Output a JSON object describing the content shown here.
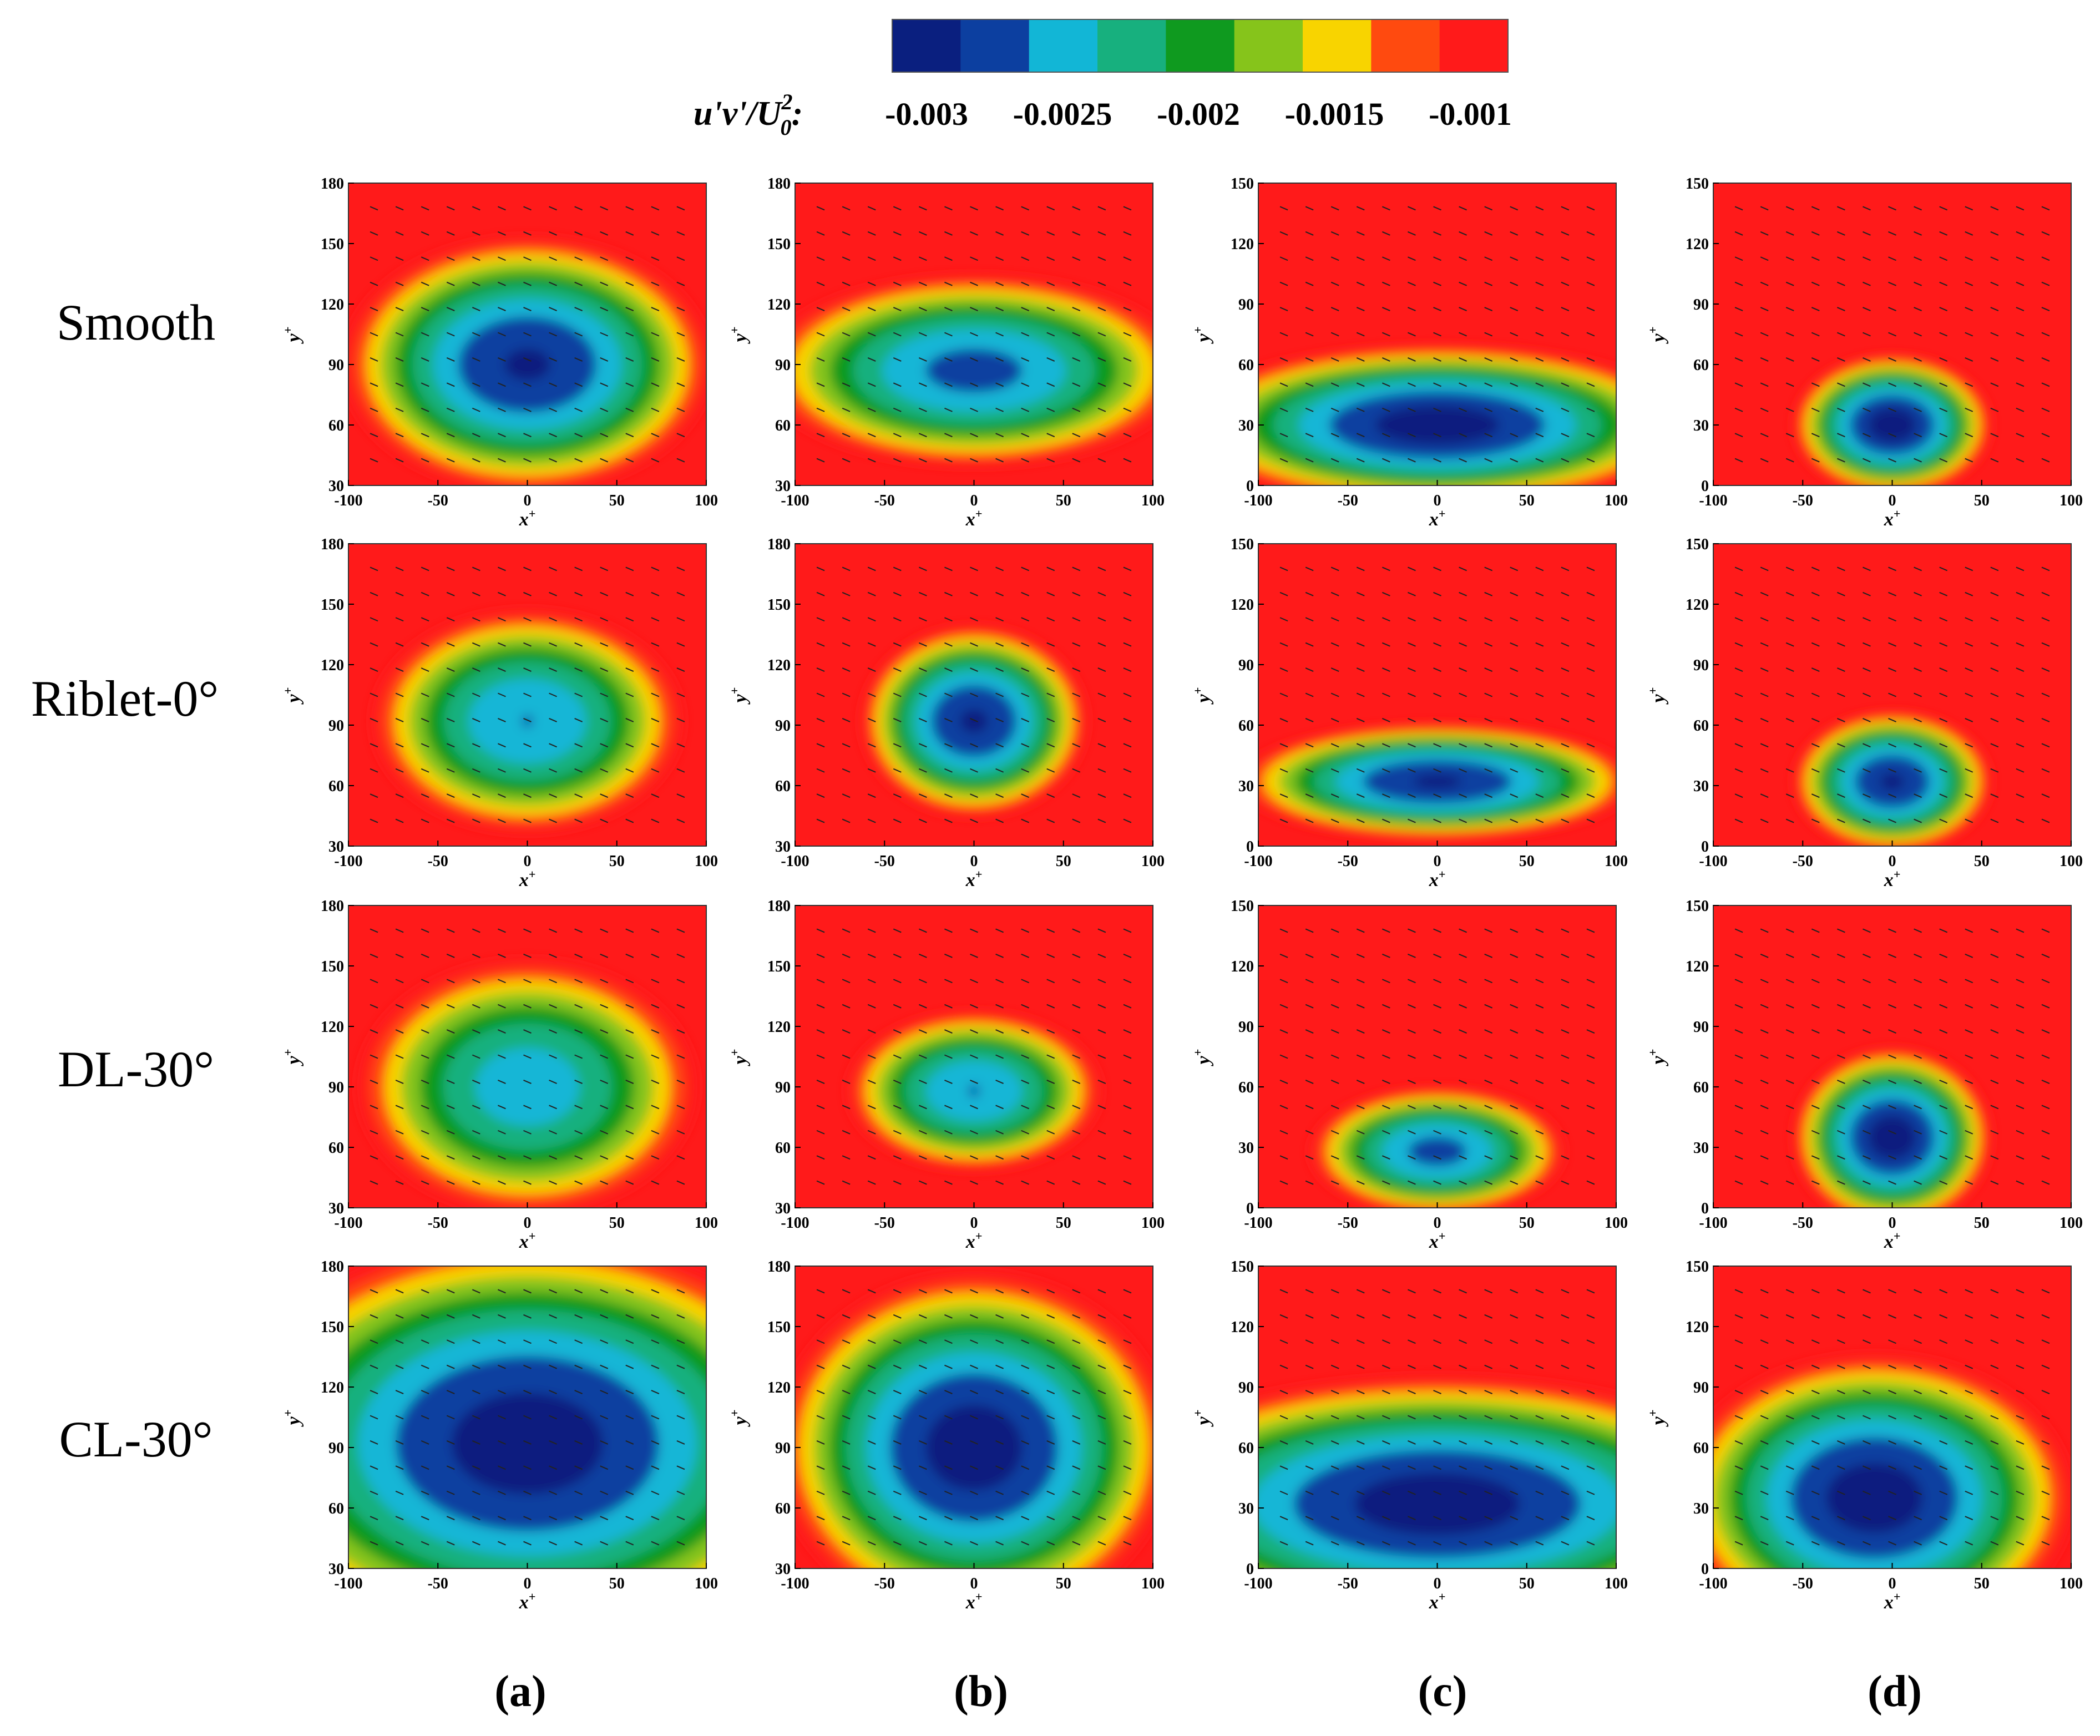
{
  "figure": {
    "colorbar": {
      "label": "u'v'/U0^2:",
      "label_parts": {
        "base": "u'v'/U",
        "sup": "2",
        "sub": "0",
        "colon": ":"
      },
      "tick_labels": [
        "-0.003",
        "-0.0025",
        "-0.002",
        "-0.0015",
        "-0.001"
      ],
      "colors": [
        "#0a1f7f",
        "#0c3fa0",
        "#12b6d6",
        "#17b07e",
        "#0f9a1f",
        "#86c41b",
        "#f8d400",
        "#ff4a0f",
        "#ff1a1a"
      ]
    },
    "row_labels": [
      "Smooth",
      "Riblet-0°",
      "DL-30°",
      "CL-30°"
    ],
    "column_labels": [
      "(a)",
      "(b)",
      "(c)",
      "(d)"
    ],
    "axis_labels": {
      "x_base": "x",
      "y_base": "y",
      "sup": "+"
    }
  },
  "chart_data": {
    "type": "heatmap",
    "quantity": "u'v'/U0^2",
    "value_range": [
      -0.0032,
      -0.0008
    ],
    "background_value": -0.0009,
    "panels": [
      {
        "row": 0,
        "col": 0,
        "x_ticks": [
          "-100",
          "-50",
          "0",
          "50",
          "100"
        ],
        "y_ticks": [
          "30",
          "60",
          "90",
          "120",
          "150",
          "180"
        ],
        "xlim": [
          -100,
          100
        ],
        "ylim": [
          30,
          180
        ],
        "core": {
          "x": 0,
          "y": 90,
          "rx": 65,
          "ry": 40,
          "min": -0.0031
        }
      },
      {
        "row": 0,
        "col": 1,
        "x_ticks": [
          "-100",
          "-50",
          "0",
          "50",
          "100"
        ],
        "y_ticks": [
          "30",
          "60",
          "90",
          "120",
          "150",
          "180"
        ],
        "xlim": [
          -100,
          100
        ],
        "ylim": [
          30,
          180
        ],
        "core": {
          "x": 0,
          "y": 87,
          "rx": 75,
          "ry": 30,
          "min": -0.0029
        }
      },
      {
        "row": 0,
        "col": 2,
        "x_ticks": [
          "-100",
          "-50",
          "0",
          "50",
          "100"
        ],
        "y_ticks": [
          "0",
          "30",
          "60",
          "90",
          "120",
          "150"
        ],
        "xlim": [
          -100,
          100
        ],
        "ylim": [
          0,
          150
        ],
        "core": {
          "x": 0,
          "y": 30,
          "rx": 90,
          "ry": 25,
          "min": -0.0032
        }
      },
      {
        "row": 0,
        "col": 3,
        "x_ticks": [
          "-100",
          "-50",
          "0",
          "50",
          "100"
        ],
        "y_ticks": [
          "0",
          "30",
          "60",
          "90",
          "120",
          "150"
        ],
        "xlim": [
          -100,
          100
        ],
        "ylim": [
          0,
          150
        ],
        "core": {
          "x": 0,
          "y": 30,
          "rx": 35,
          "ry": 22,
          "min": -0.0032
        }
      },
      {
        "row": 1,
        "col": 0,
        "x_ticks": [
          "-100",
          "-50",
          "0",
          "50",
          "100"
        ],
        "y_ticks": [
          "30",
          "60",
          "90",
          "120",
          "150",
          "180"
        ],
        "xlim": [
          -100,
          100
        ],
        "ylim": [
          30,
          180
        ],
        "core": {
          "x": 0,
          "y": 92,
          "rx": 55,
          "ry": 35,
          "min": -0.0028
        }
      },
      {
        "row": 1,
        "col": 1,
        "x_ticks": [
          "-100",
          "-50",
          "0",
          "50",
          "100"
        ],
        "y_ticks": [
          "30",
          "60",
          "90",
          "120",
          "150",
          "180"
        ],
        "xlim": [
          -100,
          100
        ],
        "ylim": [
          30,
          180
        ],
        "core": {
          "x": 0,
          "y": 92,
          "rx": 40,
          "ry": 30,
          "min": -0.0031
        }
      },
      {
        "row": 1,
        "col": 2,
        "x_ticks": [
          "-100",
          "-50",
          "0",
          "50",
          "100"
        ],
        "y_ticks": [
          "0",
          "30",
          "60",
          "90",
          "120",
          "150"
        ],
        "xlim": [
          -100,
          100
        ],
        "ylim": [
          0,
          150
        ],
        "core": {
          "x": 0,
          "y": 32,
          "rx": 70,
          "ry": 18,
          "min": -0.0031
        }
      },
      {
        "row": 1,
        "col": 3,
        "x_ticks": [
          "-100",
          "-50",
          "0",
          "50",
          "100"
        ],
        "y_ticks": [
          "0",
          "30",
          "60",
          "90",
          "120",
          "150"
        ],
        "xlim": [
          -100,
          100
        ],
        "ylim": [
          0,
          150
        ],
        "core": {
          "x": 0,
          "y": 32,
          "rx": 35,
          "ry": 22,
          "min": -0.0031
        }
      },
      {
        "row": 2,
        "col": 0,
        "x_ticks": [
          "-100",
          "-50",
          "0",
          "50",
          "100"
        ],
        "y_ticks": [
          "30",
          "60",
          "90",
          "120",
          "150",
          "180"
        ],
        "xlim": [
          -100,
          100
        ],
        "ylim": [
          30,
          180
        ],
        "core": {
          "x": 0,
          "y": 90,
          "rx": 60,
          "ry": 40,
          "min": -0.0027
        }
      },
      {
        "row": 2,
        "col": 1,
        "x_ticks": [
          "-100",
          "-50",
          "0",
          "50",
          "100"
        ],
        "y_ticks": [
          "30",
          "60",
          "90",
          "120",
          "150",
          "180"
        ],
        "xlim": [
          -100,
          100
        ],
        "ylim": [
          30,
          180
        ],
        "core": {
          "x": 0,
          "y": 88,
          "rx": 45,
          "ry": 25,
          "min": -0.0028
        }
      },
      {
        "row": 2,
        "col": 2,
        "x_ticks": [
          "-100",
          "-50",
          "0",
          "50",
          "100"
        ],
        "y_ticks": [
          "0",
          "30",
          "60",
          "90",
          "120",
          "150"
        ],
        "xlim": [
          -100,
          100
        ],
        "ylim": [
          0,
          150
        ],
        "core": {
          "x": 0,
          "y": 28,
          "rx": 45,
          "ry": 20,
          "min": -0.0029
        }
      },
      {
        "row": 2,
        "col": 3,
        "x_ticks": [
          "-100",
          "-50",
          "0",
          "50",
          "100"
        ],
        "y_ticks": [
          "0",
          "30",
          "60",
          "90",
          "120",
          "150"
        ],
        "xlim": [
          -100,
          100
        ],
        "ylim": [
          0,
          150
        ],
        "core": {
          "x": 0,
          "y": 35,
          "rx": 35,
          "ry": 28,
          "min": -0.0032
        }
      },
      {
        "row": 3,
        "col": 0,
        "x_ticks": [
          "-100",
          "-50",
          "0",
          "50",
          "100"
        ],
        "y_ticks": [
          "30",
          "60",
          "90",
          "120",
          "150",
          "180"
        ],
        "xlim": [
          -100,
          100
        ],
        "ylim": [
          30,
          180
        ],
        "core": {
          "x": 0,
          "y": 92,
          "rx": 110,
          "ry": 65,
          "min": -0.0032
        }
      },
      {
        "row": 3,
        "col": 1,
        "x_ticks": [
          "-100",
          "-50",
          "0",
          "50",
          "100"
        ],
        "y_ticks": [
          "30",
          "60",
          "90",
          "120",
          "150",
          "180"
        ],
        "xlim": [
          -100,
          100
        ],
        "ylim": [
          30,
          180
        ],
        "core": {
          "x": 0,
          "y": 90,
          "rx": 70,
          "ry": 55,
          "min": -0.0032
        }
      },
      {
        "row": 3,
        "col": 2,
        "x_ticks": [
          "-100",
          "-50",
          "0",
          "50",
          "100"
        ],
        "y_ticks": [
          "0",
          "30",
          "60",
          "90",
          "120",
          "150"
        ],
        "xlim": [
          -100,
          100
        ],
        "ylim": [
          0,
          150
        ],
        "core": {
          "x": 0,
          "y": 32,
          "rx": 120,
          "ry": 40,
          "min": -0.0032
        }
      },
      {
        "row": 3,
        "col": 3,
        "x_ticks": [
          "-100",
          "-50",
          "0",
          "50",
          "100"
        ],
        "y_ticks": [
          "0",
          "30",
          "60",
          "90",
          "120",
          "150"
        ],
        "xlim": [
          -100,
          100
        ],
        "ylim": [
          0,
          150
        ],
        "core": {
          "x": -10,
          "y": 35,
          "rx": 70,
          "ry": 45,
          "min": -0.0032
        }
      }
    ]
  }
}
